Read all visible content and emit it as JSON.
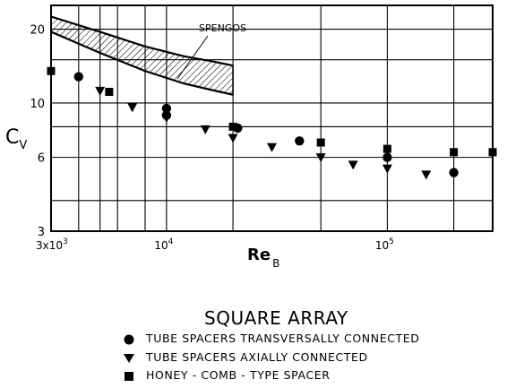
{
  "chart_data": {
    "type": "scatter",
    "x_scale": "log",
    "y_scale": "log",
    "xlim": [
      3000,
      300000
    ],
    "ylim": [
      3,
      25
    ],
    "grid": true,
    "ylabel": "C",
    "ylabel_sub": "V",
    "xlabel": "Re",
    "xlabel_sub": "B",
    "x_ticks": [
      {
        "value": 3000,
        "label": "3x10",
        "sup": "3"
      },
      {
        "value": 10000,
        "label": "10",
        "sup": "4"
      },
      {
        "value": 100000,
        "label": "10",
        "sup": "5"
      }
    ],
    "y_ticks": [
      {
        "value": 3,
        "label": "3"
      },
      {
        "value": 6,
        "label": "6"
      },
      {
        "value": 10,
        "label": "10"
      },
      {
        "value": 20,
        "label": "20"
      }
    ],
    "band": {
      "label": "SPENGOS",
      "x": [
        3000,
        5000,
        8000,
        12000,
        16000,
        20000
      ],
      "upper": [
        22.5,
        19.5,
        17.0,
        15.5,
        14.8,
        14.2
      ],
      "lower": [
        19.5,
        16.0,
        13.5,
        12.0,
        11.3,
        10.8
      ]
    },
    "legend_title": "SQUARE ARRAY",
    "series": [
      {
        "name": "TUBE SPACERS TRANSVERSALLY CONNECTED",
        "marker": "circle",
        "points": [
          [
            4000,
            12.8
          ],
          [
            10000,
            9.5
          ],
          [
            10000,
            8.9
          ],
          [
            21000,
            7.9
          ],
          [
            40000,
            7.0
          ],
          [
            100000,
            6.0
          ],
          [
            200000,
            5.2
          ]
        ]
      },
      {
        "name": "TUBE SPACERS AXIALLY CONNECTED",
        "marker": "triangle-down",
        "points": [
          [
            5000,
            11.2
          ],
          [
            7000,
            9.6
          ],
          [
            10000,
            8.7
          ],
          [
            15000,
            7.8
          ],
          [
            20000,
            7.2
          ],
          [
            30000,
            6.6
          ],
          [
            50000,
            6.0
          ],
          [
            70000,
            5.6
          ],
          [
            100000,
            5.4
          ],
          [
            150000,
            5.1
          ]
        ]
      },
      {
        "name": "HONEY - COMB - TYPE SPACER",
        "marker": "square",
        "points": [
          [
            3000,
            13.5
          ],
          [
            5500,
            11.1
          ],
          [
            20000,
            8.0
          ],
          [
            50000,
            6.9
          ],
          [
            100000,
            6.5
          ],
          [
            200000,
            6.3
          ],
          [
            300000,
            6.3
          ]
        ]
      }
    ]
  }
}
